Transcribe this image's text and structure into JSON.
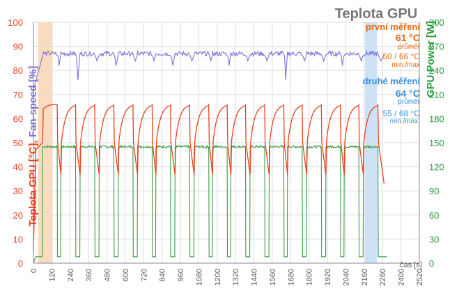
{
  "chart_data": {
    "type": "line",
    "title": "Teplota GPU",
    "ylabel_left": "Teplota GPU [°C], Fan-speed [%]",
    "ylabel_left_parts": [
      "Teplota GPU [°C]",
      ", ",
      "Fan-speed [%]"
    ],
    "ylabel_right": "GPU Power [W]",
    "xlabel": "čas [s]",
    "xlim": [
      0,
      2520
    ],
    "ylim_left": [
      0,
      100
    ],
    "ylim_right": [
      0,
      300
    ],
    "x_ticks": [
      0,
      120,
      240,
      360,
      480,
      600,
      720,
      840,
      960,
      1080,
      1200,
      1320,
      1440,
      1560,
      1680,
      1800,
      1920,
      2040,
      2160,
      2280,
      2400,
      2520
    ],
    "y_ticks_left": [
      0,
      10,
      20,
      30,
      40,
      50,
      60,
      70,
      80,
      90,
      100
    ],
    "y_ticks_right": [
      0,
      30,
      60,
      90,
      120,
      150,
      180,
      210,
      240,
      270,
      300
    ],
    "grid": true,
    "shaded_regions": [
      {
        "x": [
          30,
          125
        ],
        "color": "#f8cfa8"
      },
      {
        "x": [
          2165,
          2245
        ],
        "color": "#bcd8f4"
      }
    ],
    "cycles": {
      "start_times": [
        60,
        180,
        305,
        430,
        555,
        680,
        800,
        925,
        1050,
        1170,
        1290,
        1415,
        1540,
        1660,
        1785,
        1910,
        2030,
        2155
      ],
      "load_duration": 95,
      "temp_idle": 37,
      "temp_load": 66,
      "fan_idle": 78,
      "fan_load": 87,
      "power_idle": 8,
      "power_load": 145,
      "end_time": 2290,
      "end_temp": 33
    },
    "series": [
      {
        "name": "Teplota GPU",
        "axis": "left",
        "color": "#e8401c"
      },
      {
        "name": "Fan-speed",
        "axis": "left",
        "color": "#7e6fd9"
      },
      {
        "name": "GPU Power",
        "axis": "right",
        "color": "#3a9a40"
      }
    ],
    "annotations": {
      "first": {
        "heading": "první měření",
        "avg": "61 °C",
        "avg_label": "průměr",
        "minmax": "50 / 66 °C",
        "minmax_label": "min./max",
        "color": "#e86a10"
      },
      "second": {
        "heading": "druhé měření",
        "avg": "64 °C",
        "avg_label": "průměr",
        "minmax": "55 / 68 °C",
        "minmax_label": "min./max.",
        "color": "#3a8ee0"
      }
    },
    "colors": {
      "temp": "#e8401c",
      "fan": "#7e6fd9",
      "power": "#3a9a40",
      "grid": "#dddddd"
    }
  }
}
